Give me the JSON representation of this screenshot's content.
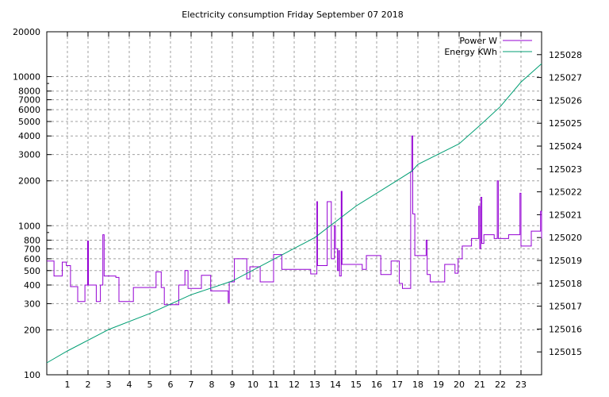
{
  "chart_data": {
    "type": "line",
    "title": "Electricity consumption Friday September 07 2018",
    "xlabel": "",
    "ylabel": "",
    "xlim": [
      0,
      24
    ],
    "ylim": [
      100,
      20000
    ],
    "yscale": "log",
    "y2lim": [
      125014,
      125029
    ],
    "grid": true,
    "legend_position": "top-right",
    "x_ticks": [
      "1",
      "2",
      "3",
      "4",
      "5",
      "6",
      "7",
      "8",
      "9",
      "10",
      "11",
      "12",
      "13",
      "14",
      "15",
      "16",
      "17",
      "18",
      "19",
      "20",
      "21",
      "22",
      "23"
    ],
    "y_ticks": [
      "100",
      "200",
      "300",
      "400",
      "500",
      "600",
      "700",
      "800",
      "1000",
      "2000",
      "3000",
      "4000",
      "5000",
      "6000",
      "7000",
      "8000",
      "10000",
      "20000"
    ],
    "y2_ticks": [
      "125015",
      "125016",
      "125017",
      "125018",
      "125019",
      "125020",
      "125021",
      "125022",
      "125023",
      "125024",
      "125025",
      "125026",
      "125027",
      "125028"
    ],
    "series": [
      {
        "name": "Power W",
        "color": "#9400d3",
        "axis": "y",
        "style": "steps",
        "points": [
          [
            0,
            580
          ],
          [
            0.35,
            460
          ],
          [
            0.75,
            570
          ],
          [
            0.95,
            540
          ],
          [
            1.15,
            390
          ],
          [
            1.5,
            310
          ],
          [
            1.85,
            400
          ],
          [
            1.98,
            790
          ],
          [
            2.02,
            400
          ],
          [
            2.4,
            310
          ],
          [
            2.6,
            400
          ],
          [
            2.72,
            870
          ],
          [
            2.78,
            460
          ],
          [
            3.35,
            450
          ],
          [
            3.5,
            310
          ],
          [
            4.2,
            385
          ],
          [
            5.3,
            490
          ],
          [
            5.55,
            385
          ],
          [
            5.7,
            295
          ],
          [
            6.4,
            400
          ],
          [
            6.7,
            500
          ],
          [
            6.85,
            380
          ],
          [
            7.5,
            465
          ],
          [
            7.95,
            365
          ],
          [
            8.8,
            305
          ],
          [
            8.85,
            420
          ],
          [
            9.1,
            600
          ],
          [
            9.7,
            440
          ],
          [
            9.85,
            530
          ],
          [
            10.35,
            420
          ],
          [
            11.0,
            640
          ],
          [
            11.4,
            510
          ],
          [
            12.8,
            475
          ],
          [
            13.1,
            1450
          ],
          [
            13.13,
            540
          ],
          [
            13.6,
            1450
          ],
          [
            13.8,
            600
          ],
          [
            13.95,
            1000
          ],
          [
            14.0,
            700
          ],
          [
            14.1,
            500
          ],
          [
            14.15,
            680
          ],
          [
            14.2,
            460
          ],
          [
            14.28,
            1700
          ],
          [
            14.32,
            550
          ],
          [
            15.3,
            510
          ],
          [
            15.5,
            630
          ],
          [
            16.2,
            470
          ],
          [
            16.7,
            580
          ],
          [
            17.1,
            410
          ],
          [
            17.25,
            380
          ],
          [
            17.65,
            2300
          ],
          [
            17.7,
            4000
          ],
          [
            17.75,
            1200
          ],
          [
            17.85,
            630
          ],
          [
            18.4,
            800
          ],
          [
            18.45,
            470
          ],
          [
            18.6,
            420
          ],
          [
            19.3,
            550
          ],
          [
            19.8,
            480
          ],
          [
            19.95,
            600
          ],
          [
            20.15,
            730
          ],
          [
            20.6,
            820
          ],
          [
            20.95,
            1350
          ],
          [
            21.0,
            700
          ],
          [
            21.05,
            1550
          ],
          [
            21.1,
            760
          ],
          [
            21.2,
            870
          ],
          [
            21.7,
            820
          ],
          [
            21.85,
            2000
          ],
          [
            21.9,
            820
          ],
          [
            22.4,
            870
          ],
          [
            22.95,
            1650
          ],
          [
            23.0,
            730
          ],
          [
            23.5,
            920
          ],
          [
            23.95,
            1250
          ],
          [
            24,
            820
          ]
        ]
      },
      {
        "name": "Energy KWh",
        "color": "#009e73",
        "axis": "y2",
        "style": "lines",
        "points": [
          [
            0,
            125014.52
          ],
          [
            1,
            125015.04
          ],
          [
            3,
            125015.98
          ],
          [
            5,
            125016.68
          ],
          [
            7,
            125017.5
          ],
          [
            9,
            125018.1
          ],
          [
            11,
            125019.05
          ],
          [
            13,
            125020.0
          ],
          [
            15,
            125021.38
          ],
          [
            17,
            125022.5
          ],
          [
            17.7,
            125022.9
          ],
          [
            18,
            125023.2
          ],
          [
            20,
            125024.1
          ],
          [
            21,
            125024.9
          ],
          [
            22,
            125025.73
          ],
          [
            23,
            125026.8
          ],
          [
            24,
            125027.6
          ]
        ]
      }
    ]
  }
}
